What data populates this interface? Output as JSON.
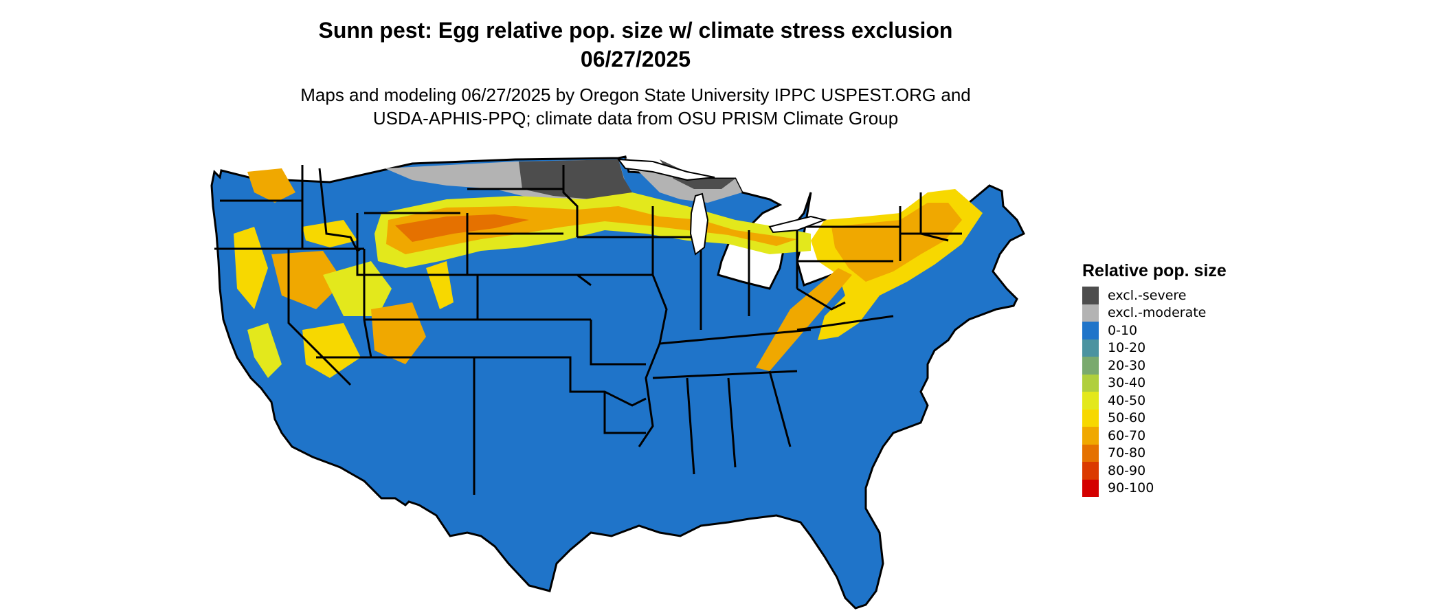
{
  "header": {
    "title_line1": "Sunn pest: Egg relative pop. size w/ climate stress exclusion",
    "title_line2": "06/27/2025",
    "subtitle_line1": "Maps and modeling 06/27/2025 by Oregon State University IPPC USPEST.ORG and",
    "subtitle_line2": "USDA-APHIS-PPQ; climate data from OSU PRISM Climate Group"
  },
  "legend": {
    "title": "Relative pop. size",
    "items": [
      {
        "label": "excl.-severe",
        "color": "#4d4d4d"
      },
      {
        "label": "excl.-moderate",
        "color": "#b3b3b3"
      },
      {
        "label": "0-10",
        "color": "#1f74c9"
      },
      {
        "label": "10-20",
        "color": "#4b93a0"
      },
      {
        "label": "20-30",
        "color": "#7aaa6e"
      },
      {
        "label": "30-40",
        "color": "#b0cf3d"
      },
      {
        "label": "40-50",
        "color": "#e3e81c"
      },
      {
        "label": "50-60",
        "color": "#f7d800"
      },
      {
        "label": "60-70",
        "color": "#f0a800"
      },
      {
        "label": "70-80",
        "color": "#e57100"
      },
      {
        "label": "80-90",
        "color": "#db3a00"
      },
      {
        "label": "90-100",
        "color": "#d40000"
      }
    ]
  },
  "map": {
    "region": "contiguous-united-states",
    "base_color": "#1f74c9",
    "border_color": "#000000"
  }
}
